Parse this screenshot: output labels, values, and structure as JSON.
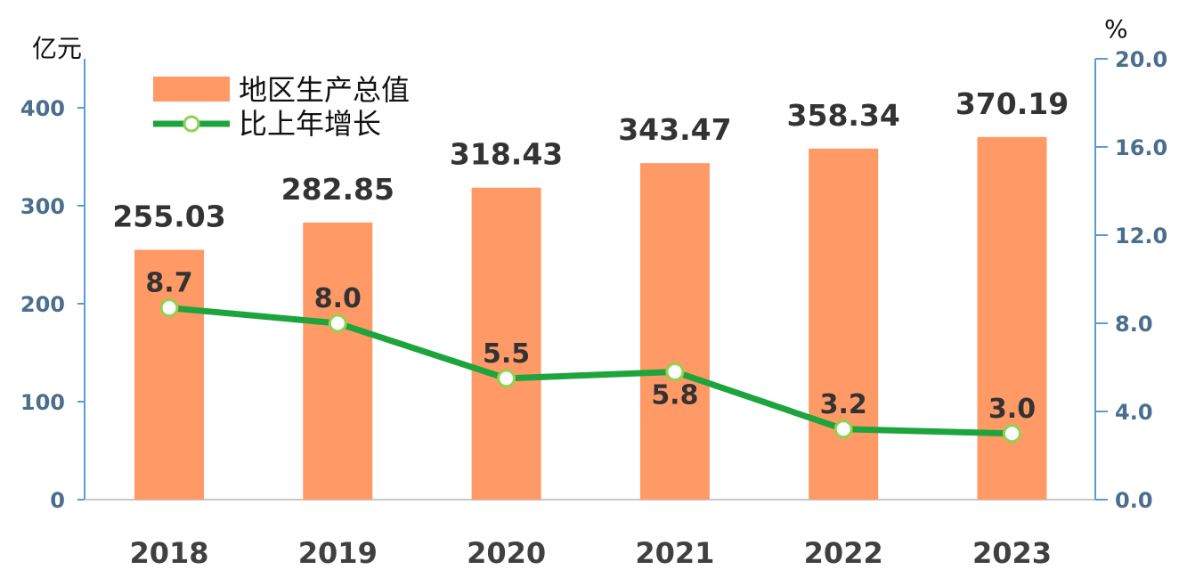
{
  "chart_data": {
    "type": "bar",
    "categories": [
      "2018",
      "2019",
      "2020",
      "2021",
      "2022",
      "2023"
    ],
    "series": [
      {
        "name": "地区生产总值",
        "type": "bar",
        "axis": "left",
        "values": [
          255.03,
          282.85,
          318.43,
          343.47,
          358.34,
          370.19
        ],
        "labels": [
          "255.03",
          "282.85",
          "318.43",
          "343.47",
          "358.34",
          "370.19"
        ],
        "color": "#FF9966"
      },
      {
        "name": "比上年增长",
        "type": "line",
        "axis": "right",
        "values": [
          8.7,
          8.0,
          5.5,
          5.8,
          3.2,
          3.0
        ],
        "labels": [
          "8.7",
          "8.0",
          "5.5",
          "5.8",
          "3.2",
          "3.0"
        ],
        "color": "#1DA43C"
      }
    ],
    "left_axis": {
      "unit": "亿元",
      "range": [
        0,
        450
      ],
      "ticks": [
        0,
        100,
        200,
        300,
        400
      ],
      "tick_labels": [
        "0",
        "100",
        "200",
        "300",
        "400"
      ]
    },
    "right_axis": {
      "unit": "%",
      "range": [
        0,
        20
      ],
      "ticks": [
        0,
        4,
        8,
        12,
        16,
        20
      ],
      "tick_labels": [
        "0.0",
        "4.0",
        "8.0",
        "12.0",
        "16.0",
        "20.0"
      ]
    },
    "legend_position": "top-left",
    "grid": false,
    "axis_color": "#5B9BD5"
  }
}
